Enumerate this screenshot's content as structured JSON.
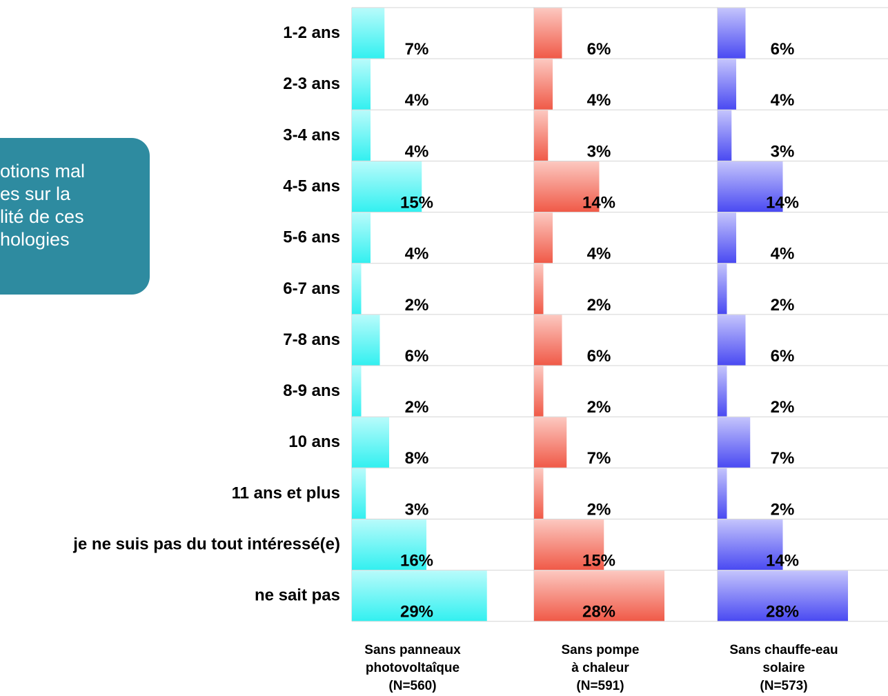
{
  "callout": {
    "lines": [
      "otions mal",
      "es sur la",
      "lité de ces",
      "hologies"
    ]
  },
  "chart_data": {
    "type": "bar",
    "categories": [
      "1-2 ans",
      "2-3 ans",
      "3-4 ans",
      "4-5 ans",
      "5-6 ans",
      "6-7 ans",
      "7-8 ans",
      "8-9 ans",
      "10 ans",
      "11 ans et plus",
      "je ne suis pas du tout intéressé(e)",
      "ne sait pas"
    ],
    "series": [
      {
        "name": "Sans panneaux photovoltaîque (N=560)",
        "name_lines": [
          "Sans panneaux",
          "photovoltaîque",
          "(N=560)"
        ],
        "values": [
          7,
          4,
          4,
          15,
          4,
          2,
          6,
          2,
          8,
          3,
          16,
          29
        ],
        "labels": [
          "7%",
          "4%",
          "4%",
          "15%",
          "4%",
          "2%",
          "6%",
          "2%",
          "8%",
          "3%",
          "16%",
          "29%"
        ],
        "color": "#33f0f0",
        "color_light": "#b8fbfb"
      },
      {
        "name": "Sans pompe à chaleur (N=591)",
        "name_lines": [
          "Sans pompe",
          "à chaleur",
          "(N=591)"
        ],
        "values": [
          6,
          4,
          3,
          14,
          4,
          2,
          6,
          2,
          7,
          2,
          15,
          28
        ],
        "labels": [
          "6%",
          "4%",
          "3%",
          "14%",
          "4%",
          "2%",
          "6%",
          "2%",
          "7%",
          "2%",
          "15%",
          "28%"
        ],
        "color": "#f05a48",
        "color_light": "#fcc8c0"
      },
      {
        "name": "Sans chauffe-eau solaire (N=573)",
        "name_lines": [
          "Sans chauffe-eau",
          "solaire",
          "(N=573)"
        ],
        "values": [
          6,
          4,
          3,
          14,
          4,
          2,
          6,
          2,
          7,
          2,
          14,
          28
        ],
        "labels": [
          "6%",
          "4%",
          "3%",
          "14%",
          "4%",
          "2%",
          "6%",
          "2%",
          "7%",
          "2%",
          "14%",
          "28%"
        ],
        "color": "#4a4af2",
        "color_light": "#c4c4fc"
      }
    ],
    "xlim": [
      0,
      35
    ],
    "grid": true,
    "legend": "bottom"
  }
}
